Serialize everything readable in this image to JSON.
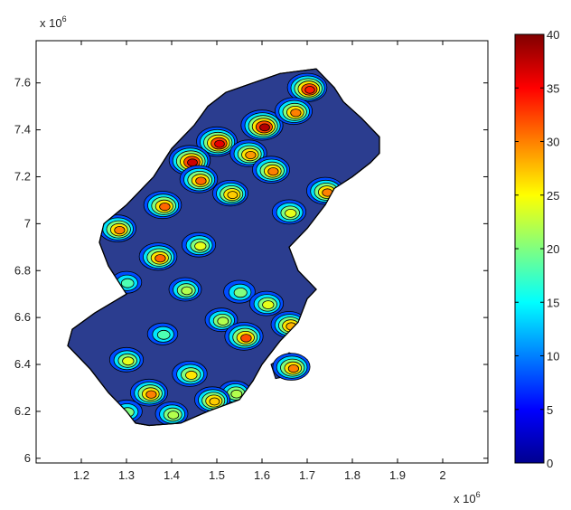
{
  "chart_data": {
    "type": "heatmap",
    "title": "",
    "xlabel": "",
    "ylabel": "",
    "x_axis": {
      "range": [
        1.1,
        2.1
      ],
      "ticks": [
        1.2,
        1.3,
        1.4,
        1.5,
        1.6,
        1.7,
        1.8,
        1.9,
        2
      ],
      "tick_labels": [
        "1.2",
        "1.3",
        "1.4",
        "1.5",
        "1.6",
        "1.7",
        "1.8",
        "1.9",
        "2"
      ],
      "exponent_label": "x 10",
      "exponent": "6"
    },
    "y_axis": {
      "range": [
        5.98,
        7.78
      ],
      "ticks": [
        6,
        6.2,
        6.4,
        6.6,
        6.8,
        7,
        7.2,
        7.4,
        7.6
      ],
      "tick_labels": [
        "6",
        "6.2",
        "6.4",
        "6.6",
        "6.8",
        "7",
        "7.2",
        "7.4",
        "7.6"
      ],
      "exponent_label": "x 10",
      "exponent": "6"
    },
    "colorbar": {
      "colormap": "jet",
      "range": [
        0,
        40
      ],
      "ticks": [
        0,
        5,
        10,
        15,
        20,
        25,
        30,
        35,
        40
      ],
      "tick_labels": [
        "0",
        "5",
        "10",
        "15",
        "20",
        "25",
        "30",
        "35",
        "40"
      ],
      "colors": [
        "#00008f",
        "#0000ff",
        "#0080ff",
        "#00ffff",
        "#80ff80",
        "#ffff00",
        "#ff8000",
        "#ff0000",
        "#800000"
      ]
    },
    "background_value_color": "#2b3d8f",
    "region_outline": [
      [
        1.35,
        6.14
      ],
      [
        1.42,
        6.15
      ],
      [
        1.48,
        6.2
      ],
      [
        1.55,
        6.25
      ],
      [
        1.58,
        6.33
      ],
      [
        1.6,
        6.4
      ],
      [
        1.64,
        6.5
      ],
      [
        1.68,
        6.58
      ],
      [
        1.7,
        6.68
      ],
      [
        1.72,
        6.72
      ],
      [
        1.68,
        6.8
      ],
      [
        1.66,
        6.9
      ],
      [
        1.7,
        6.98
      ],
      [
        1.74,
        7.08
      ],
      [
        1.76,
        7.15
      ],
      [
        1.8,
        7.2
      ],
      [
        1.84,
        7.26
      ],
      [
        1.86,
        7.3
      ],
      [
        1.86,
        7.37
      ],
      [
        1.82,
        7.45
      ],
      [
        1.78,
        7.52
      ],
      [
        1.76,
        7.58
      ],
      [
        1.72,
        7.66
      ],
      [
        1.64,
        7.64
      ],
      [
        1.58,
        7.6
      ],
      [
        1.52,
        7.56
      ],
      [
        1.48,
        7.5
      ],
      [
        1.45,
        7.42
      ],
      [
        1.4,
        7.32
      ],
      [
        1.36,
        7.2
      ],
      [
        1.3,
        7.08
      ],
      [
        1.25,
        7.0
      ],
      [
        1.24,
        6.92
      ],
      [
        1.26,
        6.82
      ],
      [
        1.3,
        6.7
      ],
      [
        1.23,
        6.62
      ],
      [
        1.18,
        6.55
      ],
      [
        1.17,
        6.48
      ],
      [
        1.22,
        6.38
      ],
      [
        1.26,
        6.28
      ],
      [
        1.3,
        6.2
      ],
      [
        1.32,
        6.15
      ]
    ],
    "hotspots": [
      {
        "x": 1.6,
        "y": 7.42,
        "v": 38
      },
      {
        "x": 1.5,
        "y": 7.35,
        "v": 36
      },
      {
        "x": 1.44,
        "y": 7.27,
        "v": 37
      },
      {
        "x": 1.7,
        "y": 7.58,
        "v": 34
      },
      {
        "x": 1.67,
        "y": 7.48,
        "v": 30
      },
      {
        "x": 1.57,
        "y": 7.3,
        "v": 29
      },
      {
        "x": 1.46,
        "y": 7.19,
        "v": 31
      },
      {
        "x": 1.62,
        "y": 7.23,
        "v": 30
      },
      {
        "x": 1.74,
        "y": 7.14,
        "v": 30
      },
      {
        "x": 1.53,
        "y": 7.13,
        "v": 27
      },
      {
        "x": 1.38,
        "y": 7.08,
        "v": 31
      },
      {
        "x": 1.66,
        "y": 7.05,
        "v": 24
      },
      {
        "x": 1.28,
        "y": 6.98,
        "v": 30
      },
      {
        "x": 1.37,
        "y": 6.86,
        "v": 31
      },
      {
        "x": 1.46,
        "y": 6.91,
        "v": 24
      },
      {
        "x": 1.3,
        "y": 6.75,
        "v": 18
      },
      {
        "x": 1.43,
        "y": 6.72,
        "v": 22
      },
      {
        "x": 1.55,
        "y": 6.71,
        "v": 20
      },
      {
        "x": 1.61,
        "y": 6.66,
        "v": 24
      },
      {
        "x": 1.66,
        "y": 6.57,
        "v": 28
      },
      {
        "x": 1.51,
        "y": 6.59,
        "v": 22
      },
      {
        "x": 1.38,
        "y": 6.53,
        "v": 18
      },
      {
        "x": 1.3,
        "y": 6.42,
        "v": 24
      },
      {
        "x": 1.56,
        "y": 6.52,
        "v": 32
      },
      {
        "x": 1.44,
        "y": 6.36,
        "v": 26
      },
      {
        "x": 1.35,
        "y": 6.28,
        "v": 30
      },
      {
        "x": 1.3,
        "y": 6.2,
        "v": 20
      },
      {
        "x": 1.54,
        "y": 6.28,
        "v": 22
      },
      {
        "x": 1.49,
        "y": 6.25,
        "v": 27
      },
      {
        "x": 1.4,
        "y": 6.19,
        "v": 22
      }
    ],
    "islands": [
      {
        "points": [
          [
            1.63,
            6.34
          ],
          [
            1.68,
            6.36
          ],
          [
            1.7,
            6.42
          ],
          [
            1.66,
            6.45
          ],
          [
            1.62,
            6.4
          ]
        ],
        "hotspot": {
          "x": 1.665,
          "y": 6.39,
          "v": 30
        }
      }
    ]
  }
}
